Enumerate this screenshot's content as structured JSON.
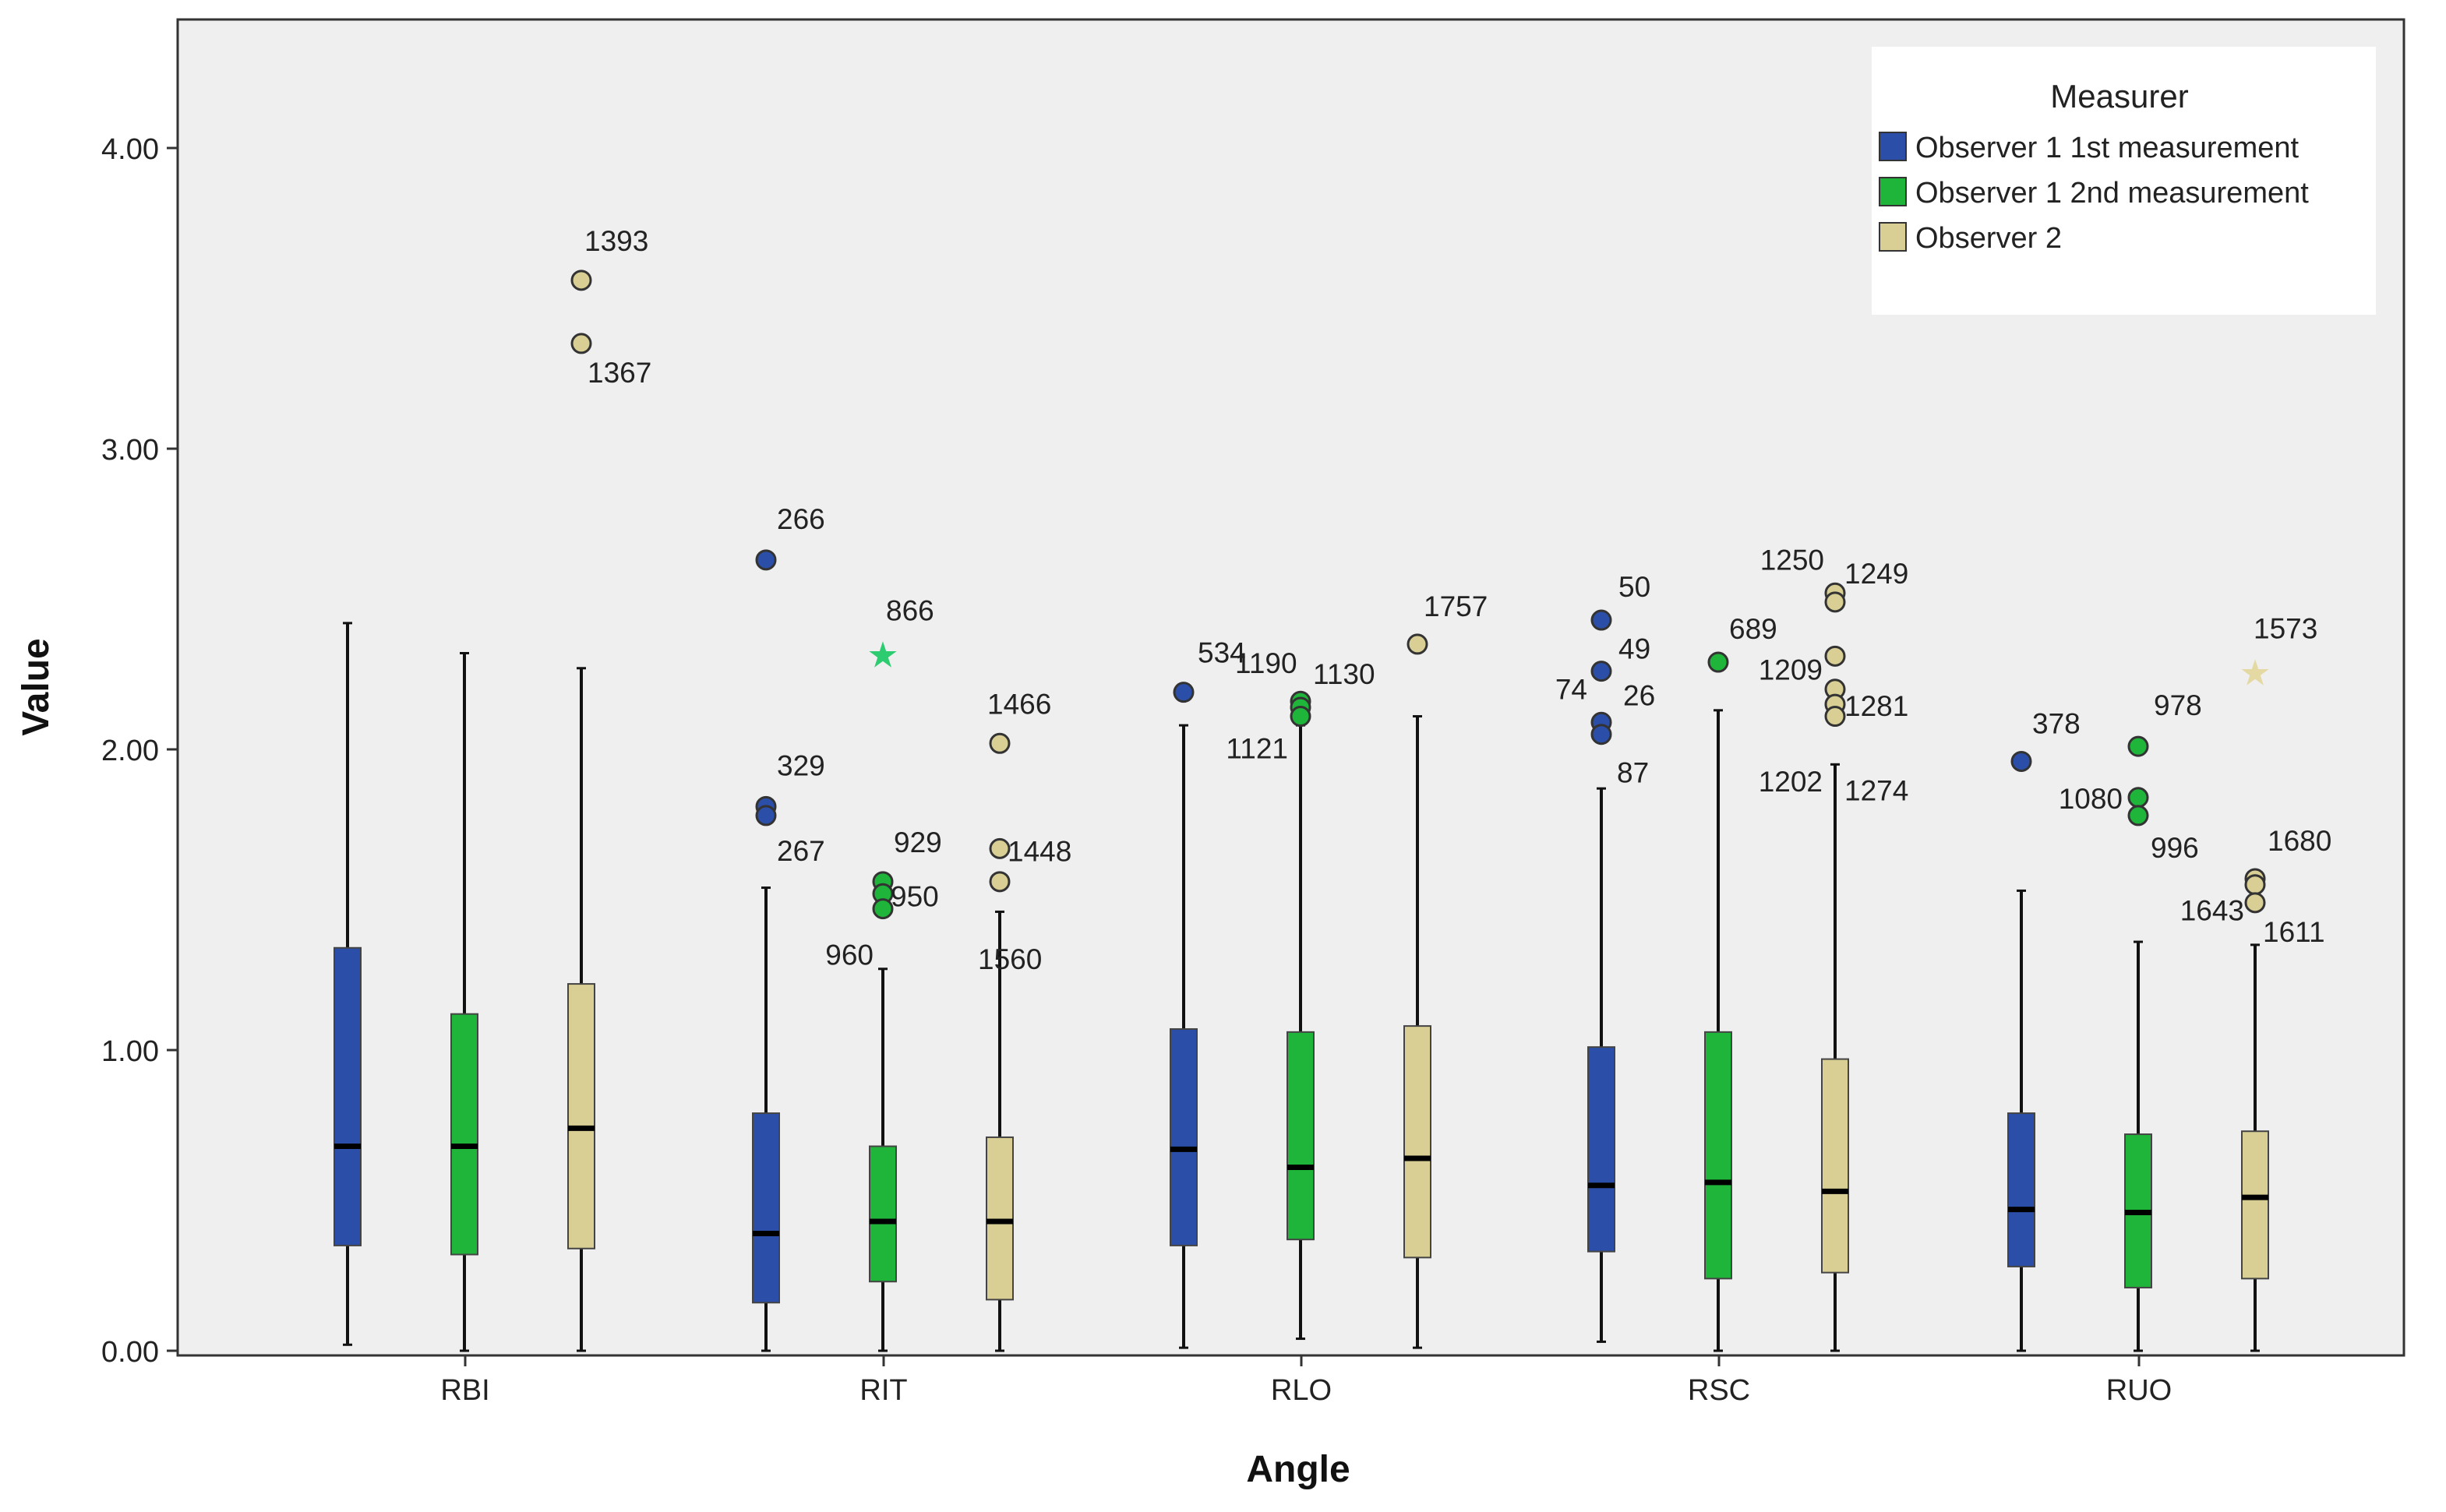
{
  "chart_data": {
    "type": "boxplot",
    "title": "",
    "xlabel": "Angle",
    "ylabel": "Value",
    "ylim": [
      0,
      4.4
    ],
    "yticks": [
      "0.00",
      "1.00",
      "2.00",
      "3.00",
      "4.00"
    ],
    "ytick_values": [
      0,
      1,
      2,
      3,
      4
    ],
    "categories": [
      "RBI",
      "RIT",
      "RLO",
      "RSC",
      "RUO"
    ],
    "legend": {
      "title": "Measurer",
      "position": "top-right",
      "entries": [
        {
          "label": "Observer 1 1st measurement",
          "color": "#2b4fa8"
        },
        {
          "label": "Observer 1 2nd measurement",
          "color": "#1fb53a"
        },
        {
          "label": "Observer 2",
          "color": "#d9cf94"
        }
      ]
    },
    "colors": {
      "plot_background": "#efefef",
      "median": "#000000",
      "extreme_green": "#2ecc71",
      "extreme_tan": "#e4d9a2"
    },
    "series": [
      {
        "name": "Observer 1 1st measurement",
        "color": "#2b4fa8",
        "boxes": [
          {
            "category": "RBI",
            "min": 0.02,
            "q1": 0.35,
            "median": 0.68,
            "q3": 1.34,
            "max": 2.42,
            "outliers": [],
            "extremes": []
          },
          {
            "category": "RIT",
            "min": 0.0,
            "q1": 0.16,
            "median": 0.39,
            "q3": 0.79,
            "max": 1.54,
            "outliers": [
              {
                "value": 2.63,
                "label": "266"
              },
              {
                "value": 1.81,
                "label": "329"
              },
              {
                "value": 1.78,
                "label": "267"
              }
            ],
            "extremes": []
          },
          {
            "category": "RLO",
            "min": 0.01,
            "q1": 0.35,
            "median": 0.67,
            "q3": 1.07,
            "max": 2.08,
            "outliers": [
              {
                "value": 2.19,
                "label": "534"
              }
            ],
            "extremes": []
          },
          {
            "category": "RSC",
            "min": 0.03,
            "q1": 0.33,
            "median": 0.55,
            "q3": 1.01,
            "max": 1.87,
            "outliers": [
              {
                "value": 2.43,
                "label": "50"
              },
              {
                "value": 2.26,
                "label": "49"
              },
              {
                "value": 2.09,
                "label": "26"
              },
              {
                "value": 2.05,
                "label": "87"
              }
            ],
            "extremes": [],
            "extra_labels": [
              {
                "label": "74",
                "value": 2.09
              }
            ]
          },
          {
            "category": "RUO",
            "min": 0.0,
            "q1": 0.28,
            "median": 0.47,
            "q3": 0.79,
            "max": 1.53,
            "outliers": [
              {
                "value": 1.96,
                "label": "378"
              }
            ],
            "extremes": []
          }
        ]
      },
      {
        "name": "Observer 1 2nd measurement",
        "color": "#1fb53a",
        "boxes": [
          {
            "category": "RBI",
            "min": 0.0,
            "q1": 0.32,
            "median": 0.68,
            "q3": 1.12,
            "max": 2.32,
            "outliers": [],
            "extremes": []
          },
          {
            "category": "RIT",
            "min": 0.0,
            "q1": 0.23,
            "median": 0.43,
            "q3": 0.68,
            "max": 1.27,
            "outliers": [
              {
                "value": 1.56,
                "label": "929"
              },
              {
                "value": 1.52,
                "label": "950"
              },
              {
                "value": 1.47,
                "label": "960"
              }
            ],
            "extremes": [
              {
                "value": 2.32,
                "label": "866"
              }
            ]
          },
          {
            "category": "RLO",
            "min": 0.04,
            "q1": 0.37,
            "median": 0.61,
            "q3": 1.06,
            "max": 2.08,
            "outliers": [
              {
                "value": 2.16,
                "label": "1190"
              },
              {
                "value": 2.14,
                "label": "1130"
              },
              {
                "value": 2.11,
                "label": "1121"
              }
            ],
            "extremes": []
          },
          {
            "category": "RSC",
            "min": 0.0,
            "q1": 0.24,
            "median": 0.56,
            "q3": 1.06,
            "max": 2.13,
            "outliers": [
              {
                "value": 2.29,
                "label": "689"
              }
            ],
            "extremes": []
          },
          {
            "category": "RUO",
            "min": 0.0,
            "q1": 0.21,
            "median": 0.46,
            "q3": 0.72,
            "max": 1.36,
            "outliers": [
              {
                "value": 2.01,
                "label": "978"
              },
              {
                "value": 1.84,
                "label": "1080"
              },
              {
                "value": 1.78,
                "label": "996"
              }
            ],
            "extremes": []
          }
        ]
      },
      {
        "name": "Observer 2",
        "color": "#d9cf94",
        "boxes": [
          {
            "category": "RBI",
            "min": 0.0,
            "q1": 0.34,
            "median": 0.74,
            "q3": 1.22,
            "max": 2.27,
            "outliers": [
              {
                "value": 3.56,
                "label": "1393"
              },
              {
                "value": 3.35,
                "label": "1367"
              }
            ],
            "extremes": []
          },
          {
            "category": "RIT",
            "min": 0.0,
            "q1": 0.17,
            "median": 0.43,
            "q3": 0.71,
            "max": 1.46,
            "outliers": [
              {
                "value": 2.02,
                "label": "1466"
              },
              {
                "value": 1.67,
                "label": "1448"
              },
              {
                "value": 1.56,
                "label": "1560"
              }
            ],
            "extremes": []
          },
          {
            "category": "RLO",
            "min": 0.01,
            "q1": 0.31,
            "median": 0.64,
            "q3": 1.08,
            "max": 2.11,
            "outliers": [
              {
                "value": 2.35,
                "label": "1757"
              }
            ],
            "extremes": []
          },
          {
            "category": "RSC",
            "min": 0.0,
            "q1": 0.26,
            "median": 0.53,
            "q3": 0.97,
            "max": 1.95,
            "outliers": [
              {
                "value": 2.52,
                "label": "1250"
              },
              {
                "value": 2.49,
                "label": "1249"
              },
              {
                "value": 2.31,
                "label": "1209"
              },
              {
                "value": 2.2,
                "label": "1281"
              },
              {
                "value": 2.15,
                "label": "1202"
              },
              {
                "value": 2.11,
                "label": "1274"
              }
            ],
            "extremes": []
          },
          {
            "category": "RUO",
            "min": 0.0,
            "q1": 0.24,
            "median": 0.51,
            "q3": 0.73,
            "max": 1.35,
            "outliers": [
              {
                "value": 1.57,
                "label": "1680"
              },
              {
                "value": 1.55,
                "label": "1643"
              },
              {
                "value": 1.49,
                "label": "1611"
              }
            ],
            "extremes": [
              {
                "value": 2.26,
                "label": "1573"
              }
            ]
          }
        ]
      }
    ]
  }
}
